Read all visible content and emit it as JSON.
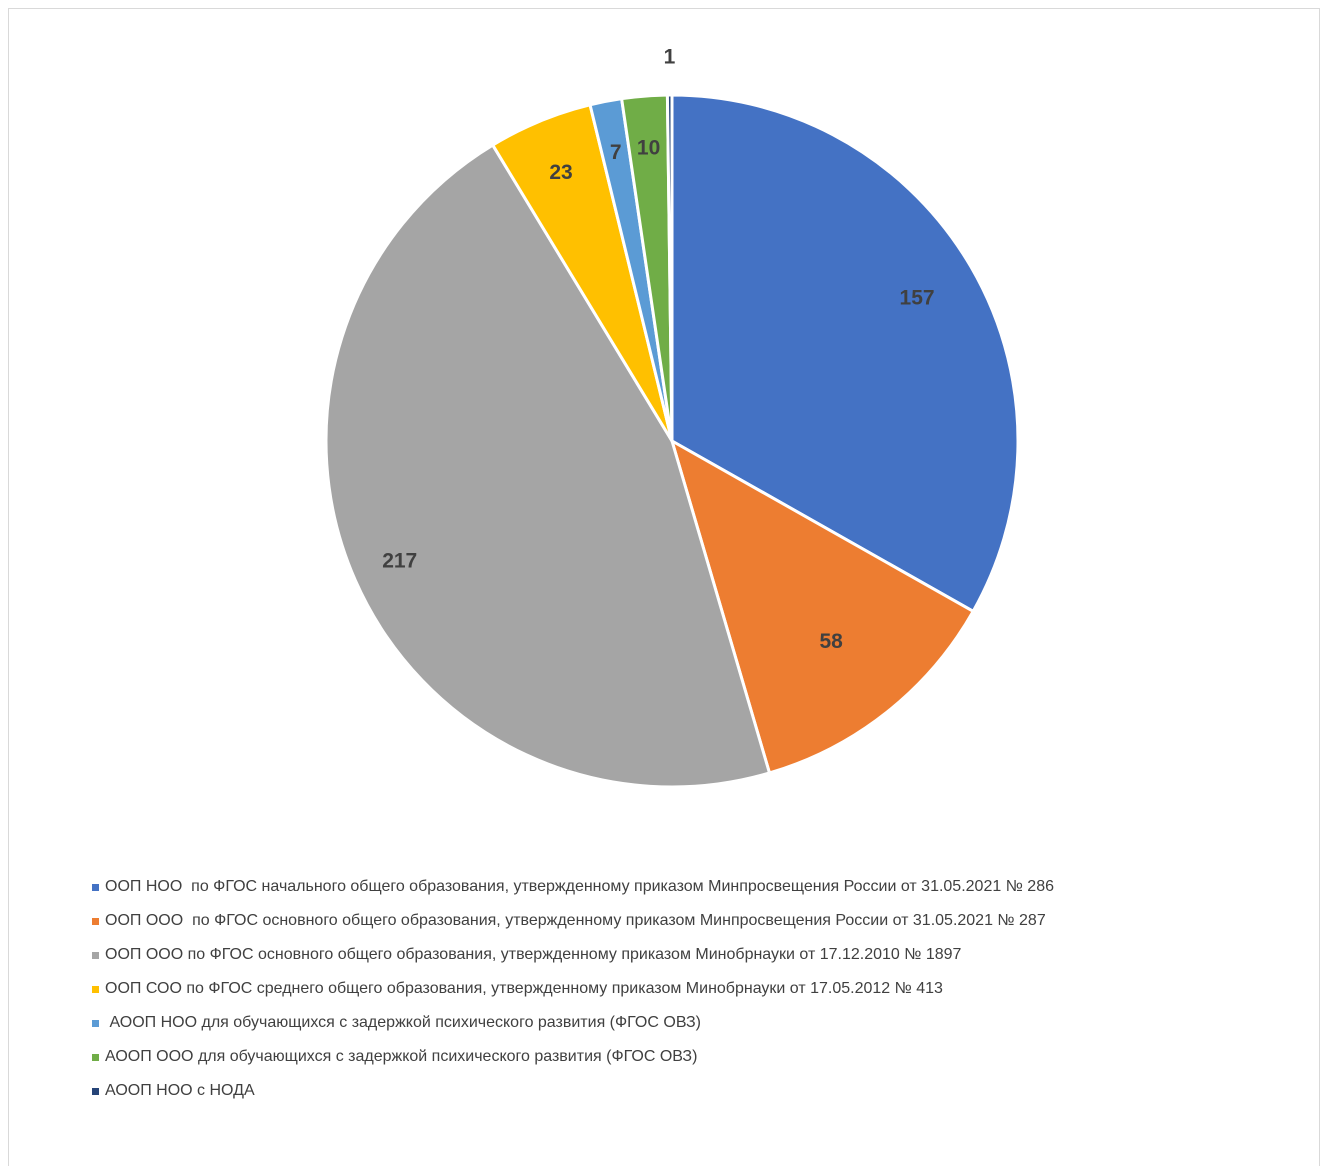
{
  "chart_data": {
    "type": "pie",
    "start_angle_deg": 0,
    "direction": "clockwise",
    "slices": [
      {
        "label": "ООП НОО  по ФГОС начального общего образования, утвержденному приказом Минпросвещения России от 31.05.2021 № 286",
        "value": 157,
        "value_label": "157",
        "color": "#4472C4"
      },
      {
        "label": "ООП ООО  по ФГОС основного общего образования, утвержденному приказом Минпросвещения России от 31.05.2021 № 287",
        "value": 58,
        "value_label": "58",
        "color": "#ED7D31"
      },
      {
        "label": "ООП ООО по ФГОС основного общего образования, утвержденному приказом Минобрнауки от 17.12.2010 № 1897",
        "value": 217,
        "value_label": "217",
        "color": "#A5A5A5"
      },
      {
        "label": "ООП СОО по ФГОС среднего общего образования, утвержденному приказом Минобрнауки от 17.05.2012 № 413",
        "value": 23,
        "value_label": "23",
        "color": "#FFC000"
      },
      {
        "label": " АООП НОО для обучающихся с задержкой психического развития (ФГОС ОВЗ)",
        "value": 7,
        "value_label": "7",
        "color": "#5B9BD5"
      },
      {
        "label": "АООП ООО для обучающихся с задержкой психического развития (ФГОС ОВЗ)",
        "value": 10,
        "value_label": "10",
        "color": "#70AD47"
      },
      {
        "label": "АООП НОО с НОДА",
        "value": 1,
        "value_label": "1",
        "color": "#264478"
      }
    ],
    "legend_position": "bottom"
  }
}
